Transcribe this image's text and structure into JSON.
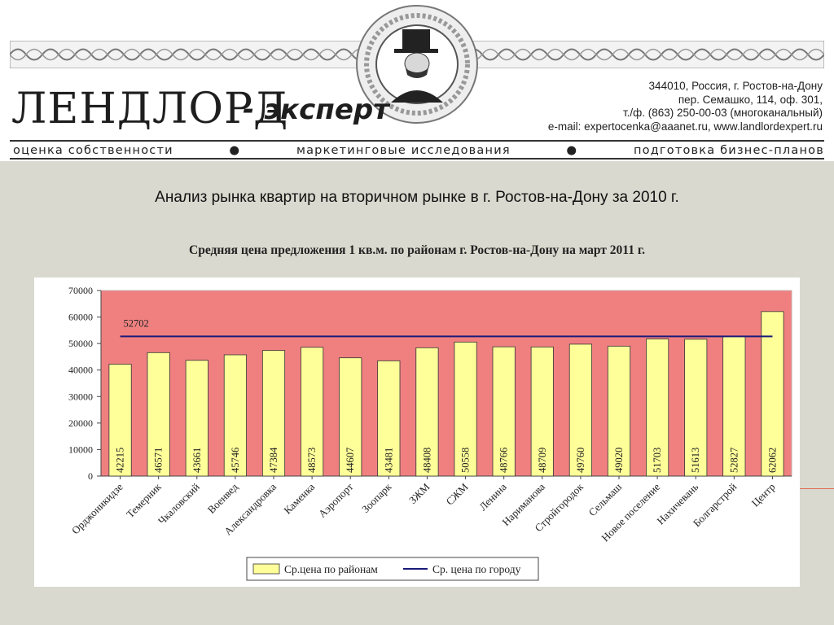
{
  "header": {
    "logo_main": "ЛЕНДЛОРД",
    "logo_sub": "- эксперт",
    "address": [
      "344010, Россия, г. Ростов-на-Дону",
      "пер. Семашко, 114, оф. 301,",
      "т./ф. (863) 250-00-03 (многоканальный)",
      "e-mail: expertocenka@aaanet.ru, www.landlordexpert.ru"
    ],
    "tagline": [
      "оценка собственности",
      "●",
      "маркетинговые исследования",
      "●",
      "подготовка бизнес-планов"
    ]
  },
  "page_title": "Анализ рынка квартир на вторичном рынке в  г. Ростов-на-Дону за 2010 г.",
  "chart_data": {
    "type": "bar",
    "title": "Средняя цена предложения 1 кв.м. по районам г. Ростов-на-Дону на март 2011 г.",
    "xlabel": "",
    "ylabel": "",
    "ylim": [
      0,
      70000
    ],
    "yticks": [
      0,
      10000,
      20000,
      30000,
      40000,
      50000,
      60000,
      70000
    ],
    "categories": [
      "Орджоникидзе",
      "Темерник",
      "Чкаловский",
      "Военвед",
      "Александровка",
      "Каменка",
      "Аэропорт",
      "Зоопарк",
      "ЗЖМ",
      "СЖМ",
      "Ленина",
      "Нариманова",
      "Стройгородок",
      "Сельмаш",
      "Новое поселение",
      "Нахичевань",
      "Болгарстрой",
      "Центр"
    ],
    "series": [
      {
        "name": "Ср.цена по районам",
        "type": "bar",
        "values": [
          42215,
          46571,
          43661,
          45746,
          47384,
          48573,
          44607,
          43481,
          48408,
          50558,
          48766,
          48709,
          49760,
          49020,
          51703,
          51613,
          52827,
          62062
        ]
      },
      {
        "name": "Ср. цена по городу",
        "type": "line",
        "value": 52702,
        "label": "52702"
      }
    ],
    "legend": "bottom",
    "grid": false,
    "colors": {
      "plot_bg": "#f08080",
      "bar_fill": "#ffff99",
      "bar_stroke": "#333333",
      "line": "#1a1a7a"
    }
  }
}
